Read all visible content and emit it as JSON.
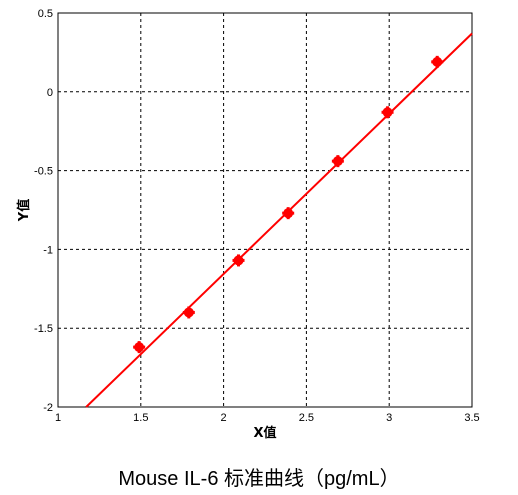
{
  "chart_data": {
    "type": "scatter",
    "caption": "Mouse IL-6 标准曲线（pg/mL）",
    "xlabel": "X值",
    "ylabel": "Y值",
    "xlim": [
      1,
      3.5
    ],
    "ylim": [
      -2,
      0.5
    ],
    "x_ticks": [
      1,
      1.5,
      2,
      2.5,
      3,
      3.5
    ],
    "x_tick_labels": [
      "1",
      "1.5",
      "2",
      "2.5",
      "3",
      "3.5"
    ],
    "y_ticks": [
      0.5,
      0,
      -0.5,
      -1,
      -1.5,
      -2
    ],
    "y_tick_labels": [
      "0.5",
      "0",
      "-0.5",
      "-1",
      "-1.5",
      "-2"
    ],
    "grid": true,
    "grid_style": "dashed",
    "series": [
      {
        "kind": "points",
        "color": "#ff0000",
        "x": [
          1.49,
          1.79,
          2.09,
          2.39,
          2.69,
          2.99,
          3.29
        ],
        "y": [
          -1.62,
          -1.4,
          -1.07,
          -0.77,
          -0.44,
          -0.13,
          0.19
        ]
      },
      {
        "kind": "fit-line",
        "color": "#ff0000",
        "x": [
          1.17,
          3.5
        ],
        "y": [
          -2.0,
          0.37
        ]
      }
    ]
  }
}
